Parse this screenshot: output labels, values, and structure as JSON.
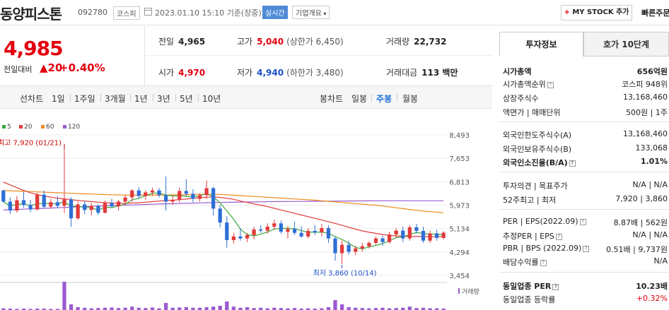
{
  "header": {
    "company_name": "동양피스톤",
    "code": "092780",
    "market": "코스피",
    "datetime": "2023.01.10 15:10",
    "datetime_suffix": "기준(장중)",
    "realtime_badge": "실시간",
    "overview_button": "기업개요",
    "mystock_plus": "+",
    "mystock_label": "MY STOCK 추가",
    "quick_order": "빠른주문"
  },
  "price": {
    "current": "4,985",
    "change_label": "전일대비",
    "change_value": "▲20",
    "change_pct": "+0.40%"
  },
  "quote": {
    "prev_close_label": "전일",
    "prev_close": "4,965",
    "high_label": "고가",
    "high": "5,040",
    "upper_limit": "(상한가 6,450)",
    "volume_label": "거래량",
    "volume": "22,732",
    "open_label": "시가",
    "open": "4,970",
    "low_label": "저가",
    "low": "4,940",
    "lower_limit": "(하한가 3,480)",
    "value_label": "거래대금",
    "value": "113 백만"
  },
  "chart_tabs": {
    "line_label": "선차트",
    "line_periods": [
      "1일",
      "1주일",
      "3개월",
      "1년",
      "3년",
      "5년",
      "10년"
    ],
    "candle_label": "봉차트",
    "candle_periods": [
      "일봉",
      "주봉",
      "월봉"
    ],
    "candle_active": "주봉"
  },
  "chart_data": {
    "type": "candlestick",
    "period": "weekly",
    "legend": [
      {
        "name": "5",
        "color": "#3aa63a"
      },
      {
        "name": "20",
        "color": "#e03b3b"
      },
      {
        "name": "60",
        "color": "#f08a1e"
      },
      {
        "name": "120",
        "color": "#9a5bd1"
      }
    ],
    "y_ticks": [
      8493,
      7653,
      6813,
      5973,
      5134,
      4294,
      3454
    ],
    "y_tick_labels": [
      "8,493",
      "7,653",
      "6,813",
      "5,973",
      "5,134",
      "4,294",
      "3,454"
    ],
    "ylim": [
      3454,
      8493
    ],
    "annotations": {
      "high": "최고 7,920 (01/21)",
      "low": "최저 3,860 (10/14)"
    },
    "volume_label": "거래량",
    "colors": {
      "up": "#e03b3b",
      "down": "#2f6fd6"
    },
    "candles": [
      [
        6500,
        6520,
        6080,
        6100
      ],
      [
        6100,
        6250,
        5650,
        5780
      ],
      [
        5780,
        6300,
        5700,
        6150
      ],
      [
        6150,
        6450,
        5880,
        5980
      ],
      [
        5980,
        6160,
        5720,
        5820
      ],
      [
        5820,
        6420,
        5780,
        6350
      ],
      [
        6350,
        6500,
        5850,
        5920
      ],
      [
        5920,
        6200,
        5850,
        6080
      ],
      [
        6080,
        6300,
        5860,
        5950
      ],
      [
        5950,
        7920,
        5700,
        6180
      ],
      [
        6180,
        6260,
        5200,
        5500
      ],
      [
        5500,
        6100,
        5450,
        6000
      ],
      [
        6000,
        6120,
        5650,
        5800
      ],
      [
        5800,
        6050,
        5600,
        5950
      ],
      [
        5950,
        6000,
        5620,
        5700
      ],
      [
        5700,
        6140,
        5680,
        6050
      ],
      [
        6050,
        6200,
        5880,
        5930
      ],
      [
        5930,
        6160,
        5780,
        6100
      ],
      [
        6100,
        6330,
        5980,
        6250
      ],
      [
        6250,
        6550,
        6100,
        6500
      ],
      [
        6500,
        6620,
        6230,
        6300
      ],
      [
        6300,
        6500,
        6160,
        6430
      ],
      [
        6430,
        6600,
        6300,
        6500
      ],
      [
        6500,
        6580,
        6250,
        6330
      ],
      [
        6330,
        7000,
        5780,
        6100
      ],
      [
        6100,
        6300,
        5980,
        6160
      ],
      [
        6160,
        6600,
        6080,
        6480
      ],
      [
        6480,
        6900,
        6300,
        6380
      ],
      [
        6380,
        6550,
        6080,
        6200
      ],
      [
        6200,
        6400,
        6100,
        6330
      ],
      [
        6330,
        6850,
        6200,
        6580
      ],
      [
        6580,
        6630,
        5600,
        5850
      ],
      [
        5850,
        5980,
        5180,
        5350
      ],
      [
        5350,
        5580,
        4450,
        4720
      ],
      [
        4720,
        4980,
        4600,
        4850
      ],
      [
        4850,
        5150,
        4700,
        4780
      ],
      [
        4780,
        4980,
        4650,
        4900
      ],
      [
        4900,
        5200,
        4750,
        5100
      ],
      [
        5100,
        5250,
        4980,
        5060
      ],
      [
        5060,
        5320,
        4950,
        5200
      ],
      [
        5200,
        5460,
        5100,
        5320
      ],
      [
        5320,
        5420,
        4950,
        5020
      ],
      [
        5020,
        5230,
        4780,
        5120
      ],
      [
        5120,
        5380,
        4900,
        4980
      ],
      [
        4980,
        5220,
        4800,
        4850
      ],
      [
        4850,
        5150,
        4780,
        5050
      ],
      [
        5050,
        5260,
        4900,
        5000
      ],
      [
        5000,
        5300,
        4850,
        5150
      ],
      [
        5150,
        5250,
        4620,
        4780
      ],
      [
        4780,
        4850,
        3980,
        4250
      ],
      [
        4250,
        4700,
        3860,
        4550
      ],
      [
        4550,
        4700,
        4200,
        4300
      ],
      [
        4300,
        4520,
        4180,
        4420
      ],
      [
        4420,
        4620,
        4300,
        4500
      ],
      [
        4500,
        4680,
        4420,
        4620
      ],
      [
        4620,
        4850,
        4550,
        4780
      ],
      [
        4780,
        4880,
        4520,
        4650
      ],
      [
        4650,
        5020,
        4600,
        4920
      ],
      [
        4920,
        5150,
        4800,
        5060
      ],
      [
        5060,
        5200,
        4650,
        4780
      ],
      [
        4780,
        5250,
        4700,
        5180
      ],
      [
        5180,
        5300,
        4950,
        5050
      ],
      [
        5050,
        5200,
        4620,
        4700
      ],
      [
        4700,
        5060,
        4620,
        4960
      ],
      [
        4960,
        5090,
        4700,
        4800
      ],
      [
        4800,
        5040,
        4740,
        4985
      ]
    ],
    "ma20": [
      6800,
      6700,
      6600,
      6500,
      6420,
      6350,
      6300,
      6260,
      6220,
      6200,
      6170,
      6140,
      6120,
      6100,
      6080,
      6060,
      6050,
      6040,
      6040,
      6050,
      6060,
      6080,
      6100,
      6120,
      6140,
      6150,
      6170,
      6190,
      6220,
      6240,
      6260,
      6270,
      6250,
      6220,
      6180,
      6120,
      6070,
      6020,
      5970,
      5920,
      5860,
      5800,
      5740,
      5680,
      5620,
      5560,
      5500,
      5440,
      5380,
      5320,
      5250,
      5180,
      5110,
      5050,
      5000,
      4960,
      4920,
      4890,
      4870,
      4860,
      4850,
      4850,
      4850,
      4840,
      4840,
      4840
    ],
    "ma60": [
      6500,
      6490,
      6480,
      6470,
      6460,
      6450,
      6440,
      6430,
      6420,
      6410,
      6400,
      6390,
      6380,
      6370,
      6360,
      6350,
      6345,
      6340,
      6335,
      6330,
      6330,
      6330,
      6330,
      6330,
      6335,
      6340,
      6345,
      6350,
      6355,
      6360,
      6360,
      6360,
      6355,
      6345,
      6330,
      6315,
      6300,
      6285,
      6270,
      6255,
      6240,
      6225,
      6210,
      6195,
      6180,
      6165,
      6150,
      6130,
      6110,
      6090,
      6070,
      6050,
      6030,
      6010,
      5990,
      5970,
      5940,
      5910,
      5880,
      5850,
      5820,
      5790,
      5760,
      5740,
      5720,
      5700
    ],
    "ma120": [
      5800,
      5810,
      5820,
      5830,
      5840,
      5850,
      5860,
      5870,
      5880,
      5890,
      5900,
      5910,
      5920,
      5930,
      5940,
      5950,
      5958,
      5966,
      5974,
      5982,
      5990,
      5998,
      6006,
      6014,
      6022,
      6030,
      6036,
      6042,
      6048,
      6054,
      6060,
      6066,
      6070,
      6074,
      6078,
      6082,
      6086,
      6090,
      6094,
      6098,
      6100,
      6102,
      6104,
      6106,
      6108,
      6110,
      6112,
      6114,
      6116,
      6118,
      6120,
      6122,
      6124,
      6126,
      6128,
      6130,
      6130,
      6130,
      6130,
      6130,
      6130,
      6130,
      6130,
      6130,
      6130,
      6130
    ],
    "volumes": [
      0.06,
      0.05,
      0.04,
      0.05,
      0.04,
      0.05,
      0.05,
      0.04,
      0.04,
      1.0,
      0.2,
      0.1,
      0.08,
      0.06,
      0.07,
      0.08,
      0.09,
      0.07,
      0.08,
      0.12,
      0.08,
      0.07,
      0.09,
      0.06,
      0.25,
      0.08,
      0.09,
      0.1,
      0.08,
      0.08,
      0.1,
      0.12,
      0.15,
      0.3,
      0.12,
      0.08,
      0.1,
      0.07,
      0.08,
      0.06,
      0.08,
      0.07,
      0.06,
      0.07,
      0.05,
      0.06,
      0.05,
      0.06,
      0.1,
      0.35,
      0.2,
      0.1,
      0.08,
      0.07,
      0.06,
      0.07,
      0.08,
      0.06,
      0.07,
      0.08,
      0.12,
      0.07,
      0.08,
      0.06,
      0.06,
      0.05
    ]
  },
  "right_panel": {
    "tab_invest": "투자정보",
    "tab_quote": "호가 10단계",
    "market_cap_label": "시가총액",
    "market_cap": "656억원",
    "cap_rank_label": "시가총액순위",
    "cap_rank": "코스피 948위",
    "shares_label": "상장주식수",
    "shares": "13,168,460",
    "par_label": "액면가 | 매매단위",
    "par": "500원 | 1주",
    "foreign_limit_label": "외국인한도주식수(A)",
    "foreign_limit": "13,168,460",
    "foreign_hold_label": "외국인보유주식수(B)",
    "foreign_hold": "133,068",
    "foreign_ratio_label": "외국인소진율(B/A)",
    "foreign_ratio": "1.01%",
    "opinion_label": "투자의견 | 목표주가",
    "opinion": "N/A | N/A",
    "week52_label": "52주최고 | 최저",
    "week52": "7,920 | 3,860",
    "per_label": "PER | EPS(2022.09)",
    "per": "8.87배 | 562원",
    "est_per_label": "추정PER | EPS",
    "est_per": "N/A | N/A",
    "pbr_label": "PBR | BPS (2022.09)",
    "pbr": "0.51배 | 9,737원",
    "dividend_label": "배당수익률",
    "dividend": "N/A",
    "ind_per_label": "동일업종 PER",
    "ind_per": "10.23배",
    "ind_rate_label": "동일업종 등락률",
    "ind_rate": "+0.32%"
  }
}
